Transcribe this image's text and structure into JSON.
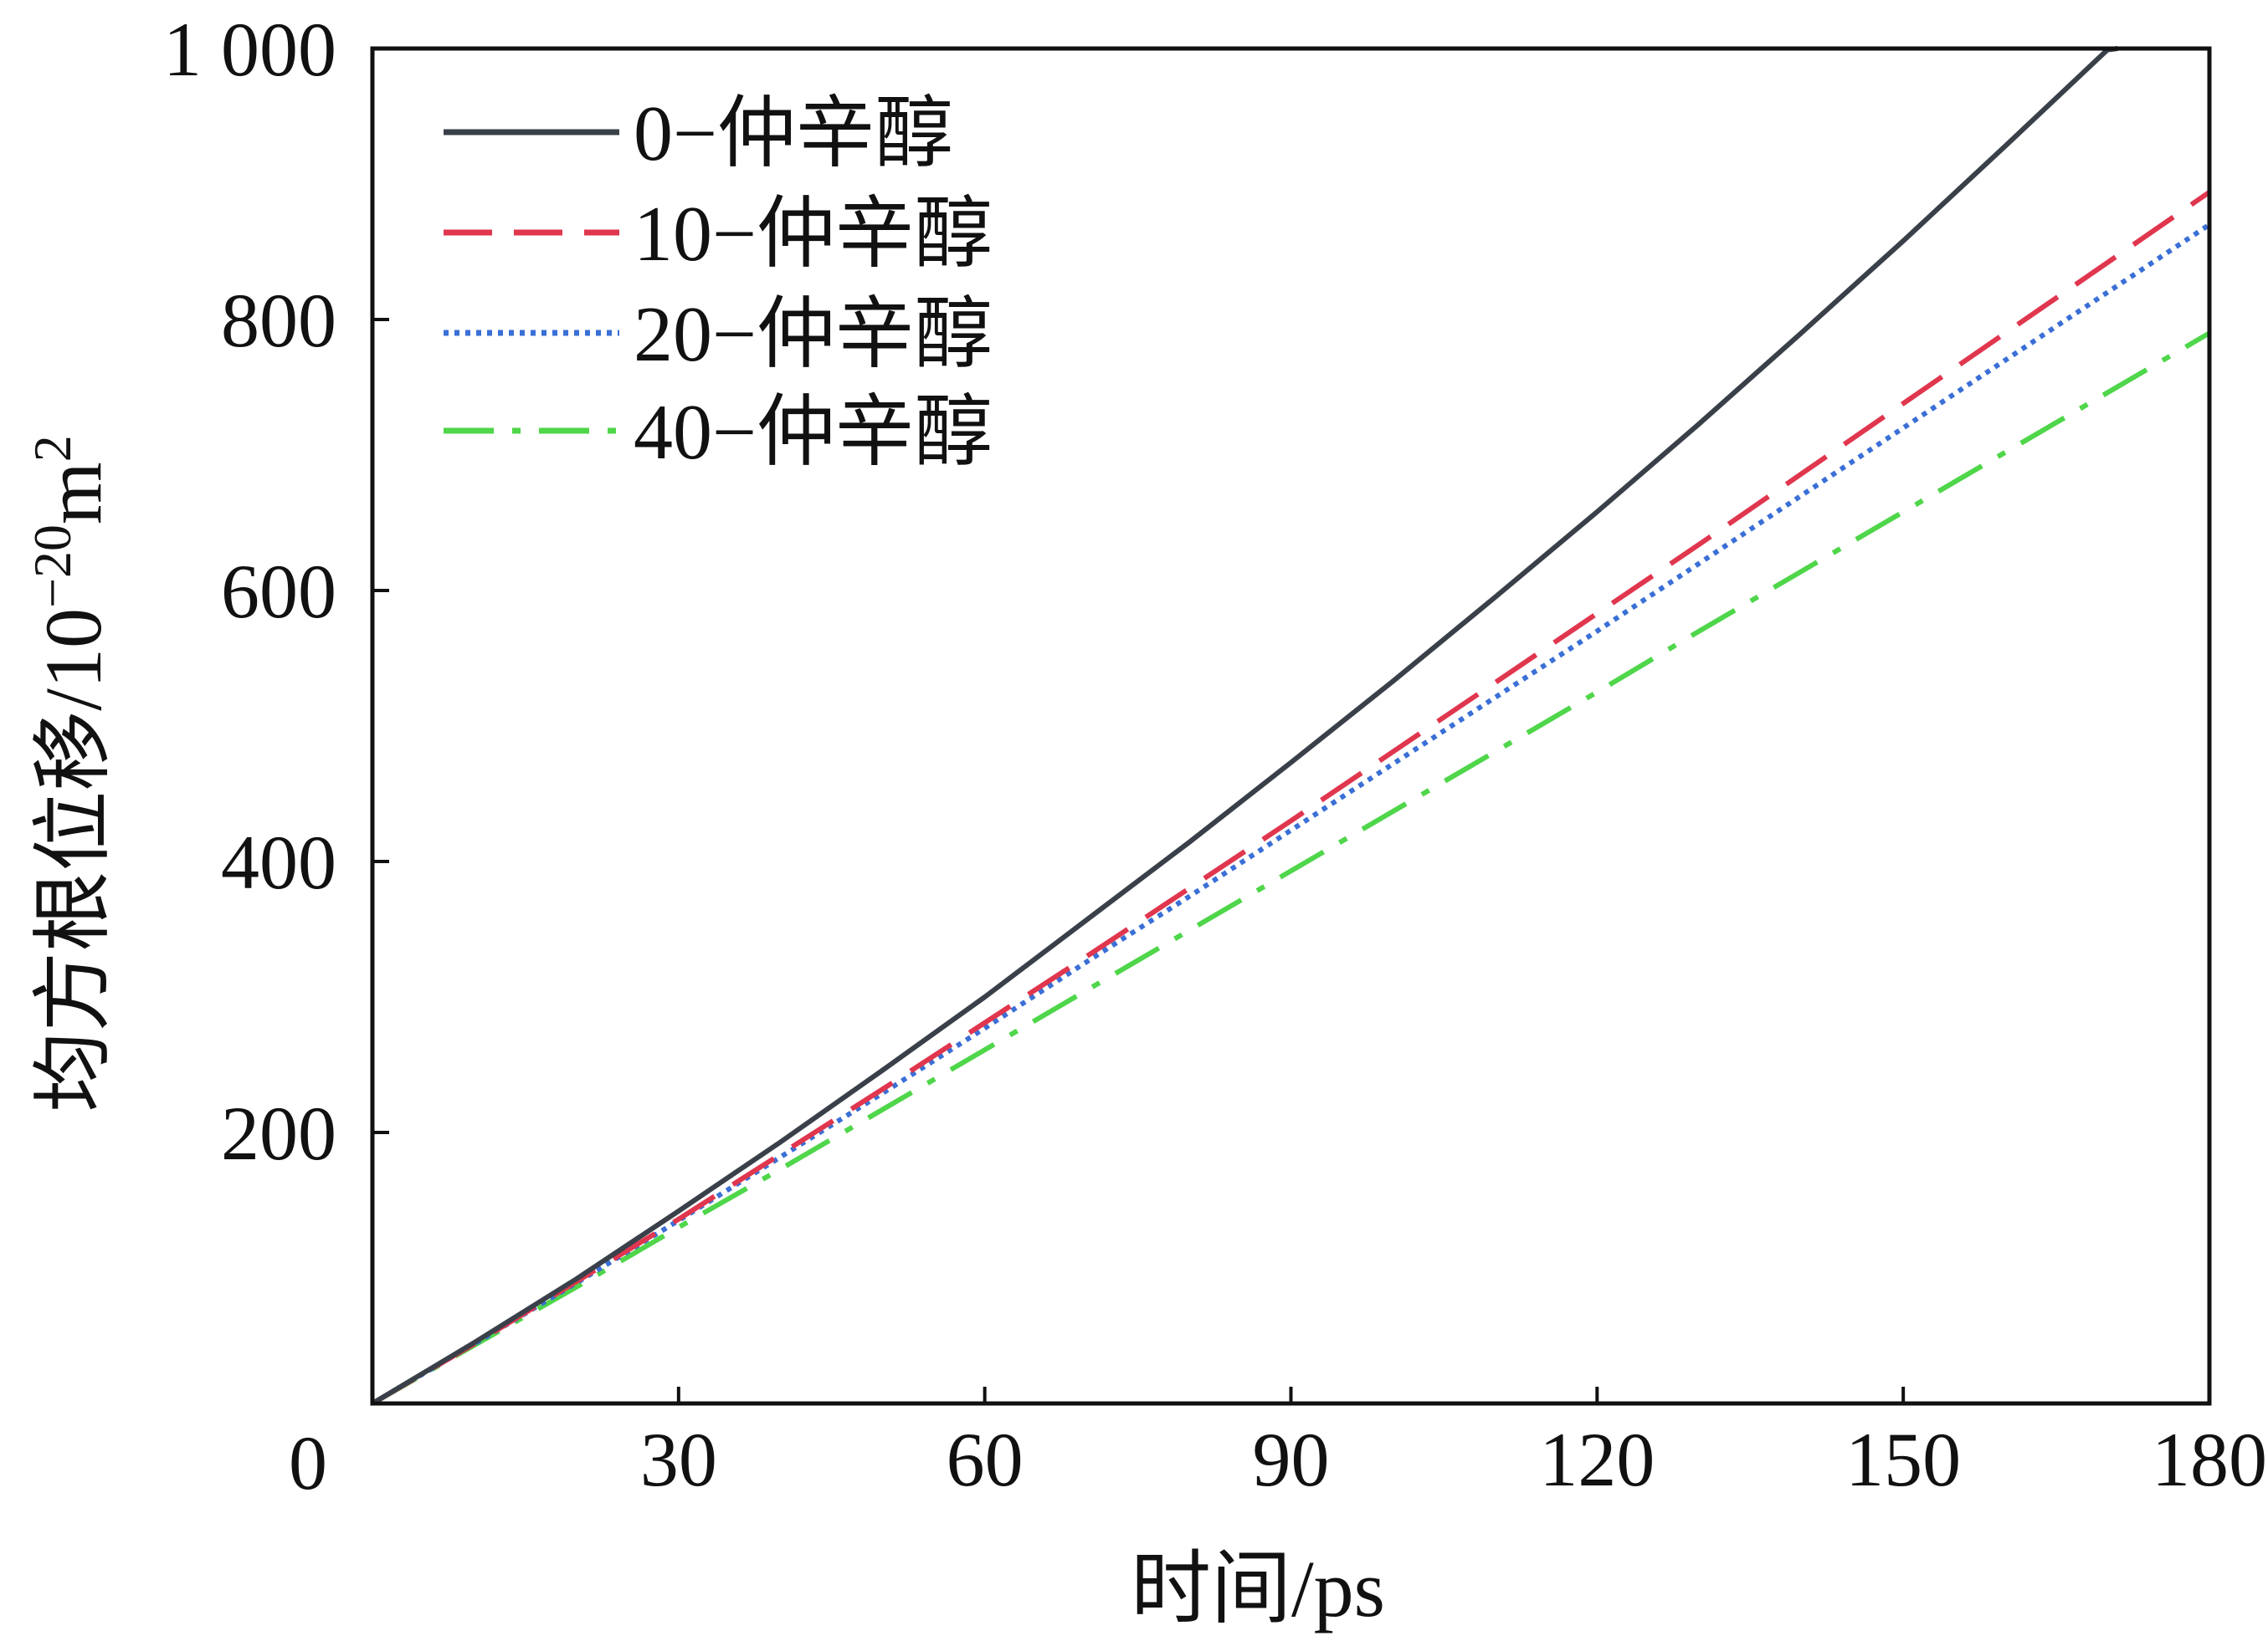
{
  "chart_data": {
    "type": "line",
    "title": "",
    "xlabel": "时间/ps",
    "ylabel_main": "均方根位移/10",
    "ylabel_exp": "−20",
    "ylabel_unit": "m",
    "ylabel_unit_exp": "2",
    "xlim": [
      0,
      180
    ],
    "ylim": [
      0,
      1000
    ],
    "x_ticks": [
      {
        "value": 0,
        "label": "0"
      },
      {
        "value": 30,
        "label": "30"
      },
      {
        "value": 60,
        "label": "60"
      },
      {
        "value": 90,
        "label": "90"
      },
      {
        "value": 120,
        "label": "120"
      },
      {
        "value": 150,
        "label": "150"
      },
      {
        "value": 180,
        "label": "180"
      }
    ],
    "y_ticks": [
      {
        "value": 200,
        "label": "200"
      },
      {
        "value": 400,
        "label": "400"
      },
      {
        "value": 600,
        "label": "600"
      },
      {
        "value": 800,
        "label": "800"
      },
      {
        "value": 1000,
        "label": "1 000"
      }
    ],
    "grid": false,
    "legend_position": "top-left",
    "series": [
      {
        "name": "0−仲辛醇",
        "color": "#3a4049",
        "dash": "solid",
        "x": [
          0,
          10,
          20,
          30,
          40,
          50,
          60,
          70,
          80,
          90,
          100,
          110,
          120,
          130,
          140,
          150,
          160,
          170,
          171
        ],
        "y": [
          0,
          45,
          92,
          142,
          193,
          246,
          300,
          357,
          414,
          473,
          533,
          595,
          658,
          723,
          790,
          858,
          928,
          999,
          1000
        ]
      },
      {
        "name": "10−仲辛醇",
        "color": "#e0364e",
        "dash": "dashed",
        "x": [
          0,
          10,
          20,
          30,
          40,
          50,
          60,
          70,
          80,
          90,
          100,
          110,
          120,
          130,
          140,
          150,
          160,
          170,
          180
        ],
        "y": [
          0,
          44,
          90,
          136,
          184,
          232,
          281,
          330,
          380,
          430,
          481,
          532,
          583,
          634,
          686,
          738,
          790,
          842,
          894
        ]
      },
      {
        "name": "20−仲辛醇",
        "color": "#3a6fd6",
        "dash": "dotted",
        "x": [
          0,
          10,
          20,
          30,
          40,
          50,
          60,
          70,
          80,
          90,
          100,
          110,
          120,
          130,
          140,
          150,
          160,
          170,
          180
        ],
        "y": [
          0,
          44,
          89,
          135,
          182,
          229,
          277,
          326,
          374,
          423,
          472,
          521,
          570,
          620,
          670,
          720,
          770,
          820,
          870
        ]
      },
      {
        "name": "40−仲辛醇",
        "color": "#4fd64a",
        "dash": "dashdot",
        "x": [
          0,
          10,
          20,
          30,
          40,
          50,
          60,
          70,
          80,
          90,
          100,
          110,
          120,
          130,
          140,
          150,
          160,
          170,
          180
        ],
        "y": [
          0,
          43,
          86,
          130,
          173,
          217,
          261,
          305,
          349,
          393,
          437,
          481,
          525,
          570,
          614,
          658,
          702,
          746,
          790
        ]
      }
    ]
  }
}
